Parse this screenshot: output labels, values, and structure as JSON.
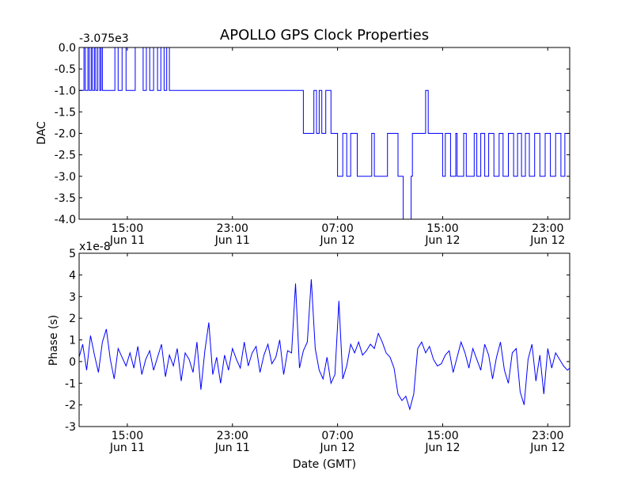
{
  "chart_data": [
    {
      "type": "line",
      "title": "APOLLO GPS Clock Properties",
      "xlabel": "",
      "ylabel": "DAC",
      "y_offset_label": "-3.075e3",
      "ylim": [
        -4.0,
        0.0
      ],
      "yticks": [
        "0.0",
        "-0.5",
        "-1.0",
        "-1.5",
        "-2.0",
        "-2.5",
        "-3.0",
        "-3.5",
        "-4.0"
      ],
      "xlim_hours": [
        11.33,
        48.67
      ],
      "xticks": [
        {
          "hour": 15,
          "time": "15:00",
          "date": "Jun 11"
        },
        {
          "hour": 23,
          "time": "23:00",
          "date": "Jun 11"
        },
        {
          "hour": 31,
          "time": "07:00",
          "date": "Jun 12"
        },
        {
          "hour": 39,
          "time": "15:00",
          "date": "Jun 12"
        },
        {
          "hour": 47,
          "time": "23:00",
          "date": "Jun 12"
        }
      ],
      "series": [
        {
          "name": "DAC",
          "color": "#0000ff",
          "x": [
            11.33,
            11.7,
            11.8,
            12.0,
            12.1,
            12.25,
            12.35,
            12.5,
            12.6,
            12.75,
            12.9,
            13.0,
            13.1,
            13.8,
            14.05,
            14.3,
            14.6,
            14.9,
            15.2,
            15.6,
            16.2,
            16.45,
            16.7,
            17.0,
            17.3,
            17.55,
            17.8,
            18.0,
            18.2,
            18.5,
            28.2,
            28.4,
            29.2,
            29.4,
            29.6,
            29.8,
            30.1,
            30.5,
            31.0,
            31.4,
            31.7,
            32.0,
            32.5,
            33.6,
            33.8,
            34.8,
            35.6,
            35.8,
            36.0,
            36.6,
            36.7,
            37.7,
            37.9,
            39.0,
            39.2,
            39.6,
            40.0,
            40.1,
            40.6,
            40.8,
            41.4,
            41.6,
            41.9,
            42.2,
            42.5,
            42.9,
            43.3,
            43.6,
            44.0,
            44.4,
            44.7,
            45.0,
            45.3,
            45.6,
            46.0,
            46.4,
            46.8,
            47.2,
            47.6,
            48.0,
            48.3,
            48.67
          ],
          "values": [
            -1.0,
            0.0,
            -1.0,
            0.0,
            -1.0,
            0.0,
            -1.0,
            0.0,
            -1.0,
            0.0,
            -1.0,
            0.0,
            -1.0,
            -1.0,
            0.0,
            -1.0,
            0.0,
            -1.0,
            -1.0,
            0.0,
            -1.0,
            0.0,
            -1.0,
            0.0,
            -1.0,
            0.0,
            -1.0,
            0.0,
            -1.0,
            -1.0,
            -1.0,
            -2.0,
            -1.0,
            -2.0,
            -1.0,
            -2.0,
            -1.0,
            -2.0,
            -3.0,
            -2.0,
            -3.0,
            -2.0,
            -3.0,
            -2.0,
            -3.0,
            -2.0,
            -3.0,
            -3.0,
            -4.0,
            -3.0,
            -2.0,
            -1.0,
            -2.0,
            -3.0,
            -2.0,
            -3.0,
            -2.0,
            -3.0,
            -2.0,
            -3.0,
            -2.0,
            -3.0,
            -2.0,
            -3.0,
            -2.0,
            -3.0,
            -2.0,
            -3.0,
            -2.0,
            -3.0,
            -2.0,
            -3.0,
            -2.0,
            -3.0,
            -2.0,
            -3.0,
            -2.0,
            -3.0,
            -2.0,
            -3.0,
            -2.0,
            -3.0
          ]
        }
      ]
    },
    {
      "type": "line",
      "title": "",
      "xlabel": "Date (GMT)",
      "ylabel": "Phase (s)",
      "y_offset_label": "x1e-8",
      "ylim": [
        -3,
        5
      ],
      "yticks": [
        "5",
        "4",
        "3",
        "2",
        "1",
        "0",
        "-1",
        "-2",
        "-3"
      ],
      "xlim_hours": [
        11.33,
        48.67
      ],
      "xticks": [
        {
          "hour": 15,
          "time": "15:00",
          "date": "Jun 11"
        },
        {
          "hour": 23,
          "time": "23:00",
          "date": "Jun 11"
        },
        {
          "hour": 31,
          "time": "07:00",
          "date": "Jun 12"
        },
        {
          "hour": 39,
          "time": "15:00",
          "date": "Jun 12"
        },
        {
          "hour": 47,
          "time": "23:00",
          "date": "Jun 12"
        }
      ],
      "series": [
        {
          "name": "Phase",
          "color": "#0000ff",
          "x": [
            11.33,
            11.6,
            11.9,
            12.2,
            12.5,
            12.8,
            13.1,
            13.4,
            13.7,
            14.0,
            14.3,
            14.6,
            14.9,
            15.2,
            15.5,
            15.8,
            16.1,
            16.4,
            16.7,
            17.0,
            17.3,
            17.6,
            17.9,
            18.2,
            18.5,
            18.8,
            19.1,
            19.4,
            19.7,
            20.0,
            20.3,
            20.6,
            20.9,
            21.2,
            21.5,
            21.8,
            22.1,
            22.4,
            22.7,
            23.0,
            23.3,
            23.6,
            23.9,
            24.2,
            24.5,
            24.8,
            25.1,
            25.4,
            25.7,
            26.0,
            26.3,
            26.6,
            26.9,
            27.2,
            27.5,
            27.8,
            28.1,
            28.4,
            28.7,
            29.0,
            29.3,
            29.6,
            29.9,
            30.2,
            30.5,
            30.8,
            31.1,
            31.4,
            31.7,
            32.0,
            32.3,
            32.6,
            32.9,
            33.2,
            33.5,
            33.8,
            34.1,
            34.4,
            34.7,
            35.0,
            35.3,
            35.6,
            35.9,
            36.2,
            36.5,
            36.8,
            37.1,
            37.4,
            37.7,
            38.0,
            38.3,
            38.6,
            38.9,
            39.2,
            39.5,
            39.8,
            40.1,
            40.4,
            40.7,
            41.0,
            41.3,
            41.6,
            41.9,
            42.2,
            42.5,
            42.8,
            43.1,
            43.4,
            43.7,
            44.0,
            44.3,
            44.6,
            44.9,
            45.2,
            45.5,
            45.8,
            46.1,
            46.4,
            46.7,
            47.0,
            47.3,
            47.6,
            47.9,
            48.2,
            48.5,
            48.67
          ],
          "values": [
            0.2,
            0.8,
            -0.4,
            1.2,
            0.3,
            -0.5,
            0.9,
            1.5,
            0.1,
            -0.8,
            0.6,
            0.2,
            -0.2,
            0.4,
            -0.3,
            0.7,
            -0.6,
            0.1,
            0.5,
            -0.4,
            0.2,
            0.8,
            -0.7,
            0.3,
            -0.2,
            0.6,
            -0.9,
            0.4,
            0.1,
            -0.5,
            0.9,
            -1.3,
            0.5,
            1.8,
            -0.6,
            0.2,
            -1.0,
            0.3,
            -0.4,
            0.6,
            0.1,
            -0.3,
            0.9,
            -0.2,
            0.4,
            0.7,
            -0.5,
            0.3,
            0.8,
            -0.1,
            0.2,
            1.0,
            -0.6,
            0.5,
            0.4,
            3.6,
            -0.3,
            0.5,
            0.9,
            3.8,
            0.6,
            -0.4,
            -0.8,
            0.2,
            -1.0,
            -0.6,
            2.8,
            -0.8,
            -0.2,
            0.8,
            0.4,
            0.9,
            0.3,
            0.5,
            0.8,
            0.6,
            1.3,
            0.9,
            0.4,
            0.2,
            -0.3,
            -1.5,
            -1.8,
            -1.6,
            -2.2,
            -1.5,
            0.6,
            0.9,
            0.4,
            0.7,
            0.1,
            -0.2,
            -0.1,
            0.3,
            0.5,
            -0.5,
            0.2,
            0.9,
            0.4,
            -0.3,
            0.6,
            0.1,
            -0.4,
            0.8,
            0.3,
            -0.8,
            0.2,
            0.9,
            -0.4,
            -1.0,
            0.4,
            0.6,
            -1.4,
            -2.0,
            0.1,
            0.8,
            -0.9,
            0.3,
            -1.5,
            0.6,
            -0.3,
            0.4,
            0.1,
            -0.2,
            -0.4,
            -0.3
          ]
        }
      ]
    }
  ]
}
